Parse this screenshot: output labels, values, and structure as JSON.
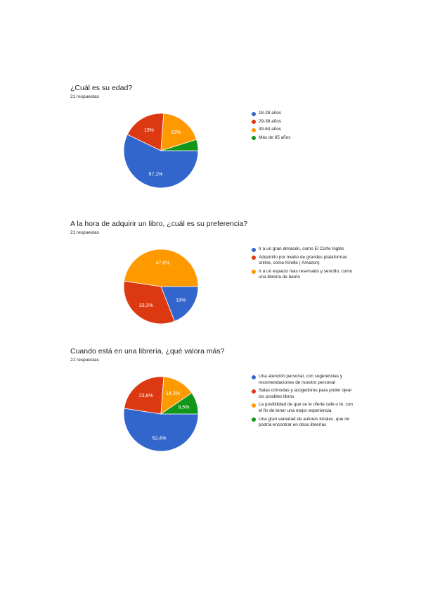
{
  "chart_data": [
    {
      "type": "pie",
      "title": "¿Cuál es su edad?",
      "subtitle": "21 respuestas",
      "categories": [
        "18-28 años",
        "29-38 años",
        "39-64 años",
        "Más de 65 años"
      ],
      "values": [
        57.1,
        19,
        19,
        4.8
      ],
      "value_labels": [
        "57,1%",
        "19%",
        "19%",
        ""
      ],
      "colors": [
        "#3366cc",
        "#dc3912",
        "#ff9900",
        "#109618"
      ],
      "legend": "right"
    },
    {
      "type": "pie",
      "title": "A la hora de adquirir un libro, ¿cuál es su preferencia?",
      "subtitle": "21 respuestas",
      "categories": [
        "Ir a un gran almacén, como El Corte Inglés",
        "Adquirirlo por medio de grandes plataformas online, como Kindle ( Amazon)",
        "Ir a un espacio más reservado y sencillo, como una librería de barrio"
      ],
      "values": [
        19,
        33.3,
        47.6
      ],
      "value_labels": [
        "19%",
        "33,3%",
        "47,6%"
      ],
      "colors": [
        "#3366cc",
        "#dc3912",
        "#ff9900"
      ],
      "legend": "right"
    },
    {
      "type": "pie",
      "title": "Cuando está en una librería, ¿qué valora más?",
      "subtitle": "21 respuestas",
      "categories": [
        "Una atención personal, con sugerencias y recomendaciones de nuestro personal",
        "Salas cómodas y acogedoras para poder ojear los posibles libros",
        "La posibilidad de que se le oferte cafe o té, con el fin de tener una mejor experiencia",
        "Una gran variedad de autores locales, que no podría encontrar en otras librerías"
      ],
      "values": [
        52.4,
        23.8,
        14.3,
        9.5
      ],
      "value_labels": [
        "52,4%",
        "23,8%",
        "14,3%",
        "9,5%"
      ],
      "colors": [
        "#3366cc",
        "#dc3912",
        "#ff9900",
        "#109618"
      ],
      "legend": "right"
    }
  ]
}
